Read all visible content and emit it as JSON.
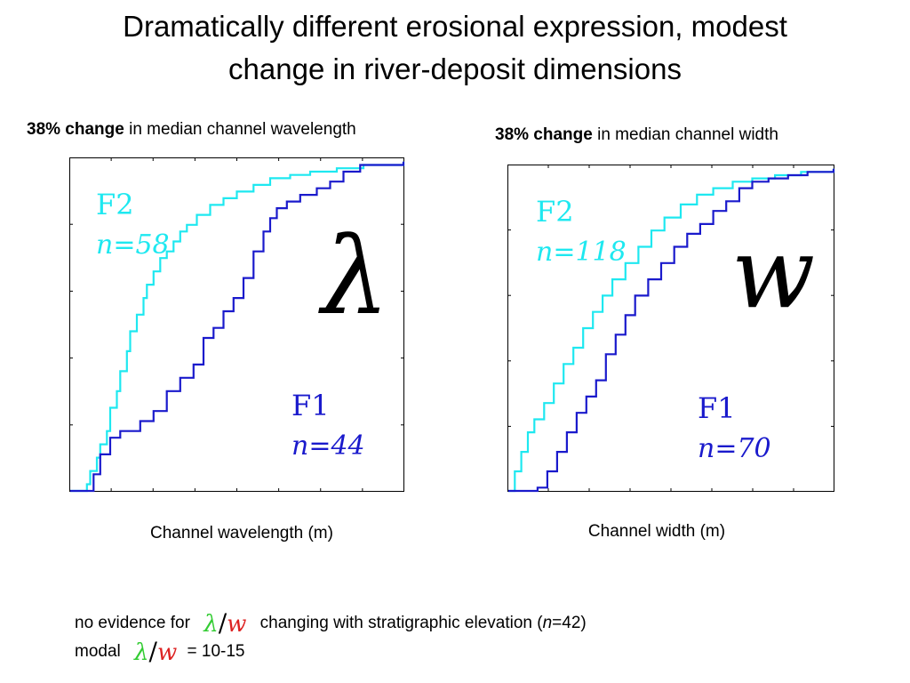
{
  "slide": {
    "title_line1": "Dramatically different erosional expression, modest",
    "title_line2": "change in river-deposit dimensions"
  },
  "captions": {
    "left_bold": "38% change",
    "left_rest": " in median channel wavelength",
    "right_bold": "38% change",
    "right_rest": " in median channel width"
  },
  "footer": {
    "line1_pre": "no evidence for",
    "line1_post": "changing with stratigraphic elevation (",
    "line1_n": "n",
    "line1_end": "=42)",
    "line2_pre": "modal",
    "line2_post": "= 10-15",
    "lambda": "λ",
    "slash": "/",
    "w": "w"
  },
  "colors": {
    "f2": "#1ee8f0",
    "f1": "#1a1acc",
    "lambda_green": "#33cc33",
    "w_red": "#dd2222"
  },
  "chart_data": [
    {
      "type": "line",
      "xlabel": "Channel wavelength (m)",
      "ylabel": "",
      "big_symbol": "λ",
      "xlim": [
        0,
        1
      ],
      "ylim": [
        0,
        1
      ],
      "grid": false,
      "series": [
        {
          "name": "F2",
          "label_line1": "F2",
          "label_line2": "n=58",
          "color": "#1ee8f0",
          "x": [
            0.0,
            0.05,
            0.06,
            0.08,
            0.09,
            0.11,
            0.12,
            0.14,
            0.15,
            0.17,
            0.18,
            0.2,
            0.22,
            0.23,
            0.25,
            0.27,
            0.29,
            0.31,
            0.33,
            0.35,
            0.38,
            0.42,
            0.46,
            0.5,
            0.55,
            0.6,
            0.66,
            0.72,
            0.8,
            0.88,
            1.0
          ],
          "y": [
            0.0,
            0.02,
            0.06,
            0.1,
            0.14,
            0.18,
            0.25,
            0.3,
            0.36,
            0.42,
            0.48,
            0.53,
            0.58,
            0.62,
            0.66,
            0.7,
            0.72,
            0.75,
            0.78,
            0.8,
            0.83,
            0.86,
            0.88,
            0.9,
            0.92,
            0.94,
            0.95,
            0.96,
            0.97,
            0.98,
            0.99
          ]
        },
        {
          "name": "F1",
          "label_line1": "F1",
          "label_line2": "n=44",
          "color": "#1a1acc",
          "x": [
            0.0,
            0.07,
            0.09,
            0.12,
            0.15,
            0.21,
            0.25,
            0.29,
            0.33,
            0.37,
            0.4,
            0.43,
            0.46,
            0.49,
            0.52,
            0.55,
            0.58,
            0.6,
            0.62,
            0.65,
            0.69,
            0.74,
            0.78,
            0.82,
            0.87,
            1.0
          ],
          "y": [
            0.0,
            0.05,
            0.11,
            0.16,
            0.18,
            0.21,
            0.24,
            0.3,
            0.34,
            0.38,
            0.46,
            0.49,
            0.54,
            0.58,
            0.64,
            0.72,
            0.78,
            0.82,
            0.85,
            0.87,
            0.89,
            0.91,
            0.93,
            0.96,
            0.98,
            0.99
          ]
        }
      ]
    },
    {
      "type": "line",
      "xlabel": "Channel width (m)",
      "ylabel": "",
      "big_symbol": "w",
      "xlim": [
        0,
        1
      ],
      "ylim": [
        0,
        1
      ],
      "grid": false,
      "series": [
        {
          "name": "F2",
          "label_line1": "F2",
          "label_line2": "n=118",
          "color": "#1ee8f0",
          "x": [
            0.0,
            0.02,
            0.04,
            0.06,
            0.08,
            0.11,
            0.14,
            0.17,
            0.2,
            0.23,
            0.26,
            0.29,
            0.32,
            0.36,
            0.4,
            0.44,
            0.48,
            0.53,
            0.58,
            0.63,
            0.69,
            0.75,
            0.82,
            0.9,
            1.0
          ],
          "y": [
            0.0,
            0.06,
            0.12,
            0.18,
            0.22,
            0.27,
            0.33,
            0.39,
            0.44,
            0.5,
            0.55,
            0.6,
            0.65,
            0.7,
            0.75,
            0.8,
            0.84,
            0.88,
            0.91,
            0.93,
            0.95,
            0.96,
            0.97,
            0.98,
            0.99
          ]
        },
        {
          "name": "F1",
          "label_line1": "F1",
          "label_line2": "n=70",
          "color": "#1a1acc",
          "x": [
            0.0,
            0.09,
            0.12,
            0.15,
            0.18,
            0.21,
            0.24,
            0.27,
            0.3,
            0.33,
            0.36,
            0.39,
            0.43,
            0.47,
            0.51,
            0.55,
            0.59,
            0.63,
            0.67,
            0.71,
            0.75,
            0.8,
            0.86,
            0.92,
            1.0
          ],
          "y": [
            0.0,
            0.01,
            0.06,
            0.12,
            0.18,
            0.24,
            0.29,
            0.34,
            0.42,
            0.48,
            0.54,
            0.6,
            0.65,
            0.7,
            0.75,
            0.79,
            0.82,
            0.86,
            0.89,
            0.93,
            0.95,
            0.96,
            0.97,
            0.98,
            0.99
          ]
        }
      ]
    }
  ]
}
